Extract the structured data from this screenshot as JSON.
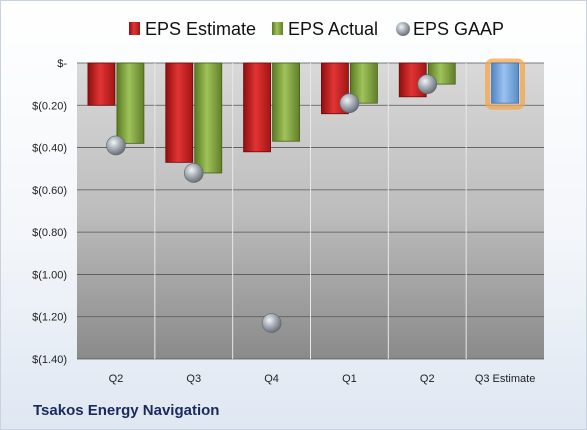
{
  "company_name": "Tsakos Energy Navigation",
  "legend": [
    {
      "label": "EPS Estimate",
      "color": "#cc1f1f",
      "marker": "square"
    },
    {
      "label": "EPS Actual",
      "color": "#7ea23a",
      "marker": "square"
    },
    {
      "label": "EPS GAAP",
      "color": "#9fa6ae",
      "marker": "sphere"
    }
  ],
  "chart_data": {
    "type": "bar",
    "categories": [
      "Q2",
      "Q3",
      "Q4",
      "Q1",
      "Q2",
      "Q3 Estimate"
    ],
    "series": [
      {
        "name": "EPS Estimate",
        "values": [
          -0.2,
          -0.47,
          -0.42,
          -0.24,
          -0.16,
          null
        ],
        "color": "#cc1f1f"
      },
      {
        "name": "EPS Actual",
        "values": [
          -0.38,
          -0.52,
          -0.37,
          -0.19,
          -0.1,
          null
        ],
        "color": "#7ea23a"
      },
      {
        "name": "EPS GAAP",
        "values": [
          -0.39,
          -0.52,
          -1.23,
          -0.19,
          -0.1,
          null
        ],
        "color": "#9fa6ae",
        "style": "marker"
      }
    ],
    "next_estimate": {
      "category": "Q3 Estimate",
      "value": -0.19,
      "color": "#7aa9de",
      "glow": "#f5a64a"
    },
    "ylim": [
      -1.4,
      0
    ],
    "yticks": [
      0,
      -0.2,
      -0.4,
      -0.6,
      -0.8,
      -1.0,
      -1.2,
      -1.4
    ],
    "ytick_labels": [
      "$-",
      "$(0.20)",
      "$(0.40)",
      "$(0.60)",
      "$(0.80)",
      "$(1.00)",
      "$(1.20)",
      "$(1.40)"
    ],
    "grid": true,
    "legend_position": "top",
    "title": "",
    "xlabel": "",
    "ylabel": ""
  }
}
